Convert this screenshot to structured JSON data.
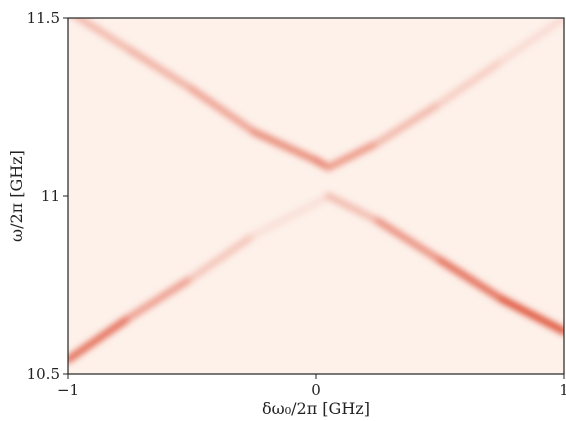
{
  "chart_data": {
    "type": "heatmap",
    "title": "",
    "xlabel": "δω₀/2π [GHz]",
    "ylabel": "ω/2π [GHz]",
    "xlim": [
      -1,
      1
    ],
    "ylim": [
      10.5,
      11.5
    ],
    "x_ticks": [
      {
        "value": -1,
        "label": "−1"
      },
      {
        "value": 0,
        "label": "0"
      },
      {
        "value": 1,
        "label": "1"
      }
    ],
    "y_ticks": [
      {
        "value": 10.5,
        "label": "10.5"
      },
      {
        "value": 11,
        "label": "11"
      },
      {
        "value": 11.5,
        "label": "11.5"
      }
    ],
    "grid": false,
    "colormap": "white-to-red",
    "colors": {
      "background": "#fdf1ea",
      "peak": "#d93a1f"
    },
    "series": [
      {
        "x": [
          -1.0,
          -0.75,
          -0.5,
          -0.25,
          0.0,
          0.05,
          0.25,
          0.5,
          0.75,
          1.0
        ],
        "y": [
          11.52,
          11.41,
          11.3,
          11.18,
          11.1,
          11.08,
          11.15,
          11.26,
          11.38,
          11.5
        ],
        "intensity": [
          0.3,
          0.33,
          0.4,
          0.5,
          0.65,
          0.62,
          0.4,
          0.25,
          0.15,
          0.1
        ]
      },
      {
        "x": [
          -1.0,
          -0.75,
          -0.5,
          -0.25,
          0.0,
          0.05,
          0.25,
          0.5,
          0.75,
          1.0
        ],
        "y": [
          10.54,
          10.66,
          10.77,
          10.89,
          10.98,
          11.0,
          10.93,
          10.82,
          10.71,
          10.62
        ],
        "intensity": [
          0.9,
          0.6,
          0.35,
          0.15,
          0.05,
          0.15,
          0.45,
          0.65,
          0.85,
          0.95
        ]
      }
    ]
  }
}
